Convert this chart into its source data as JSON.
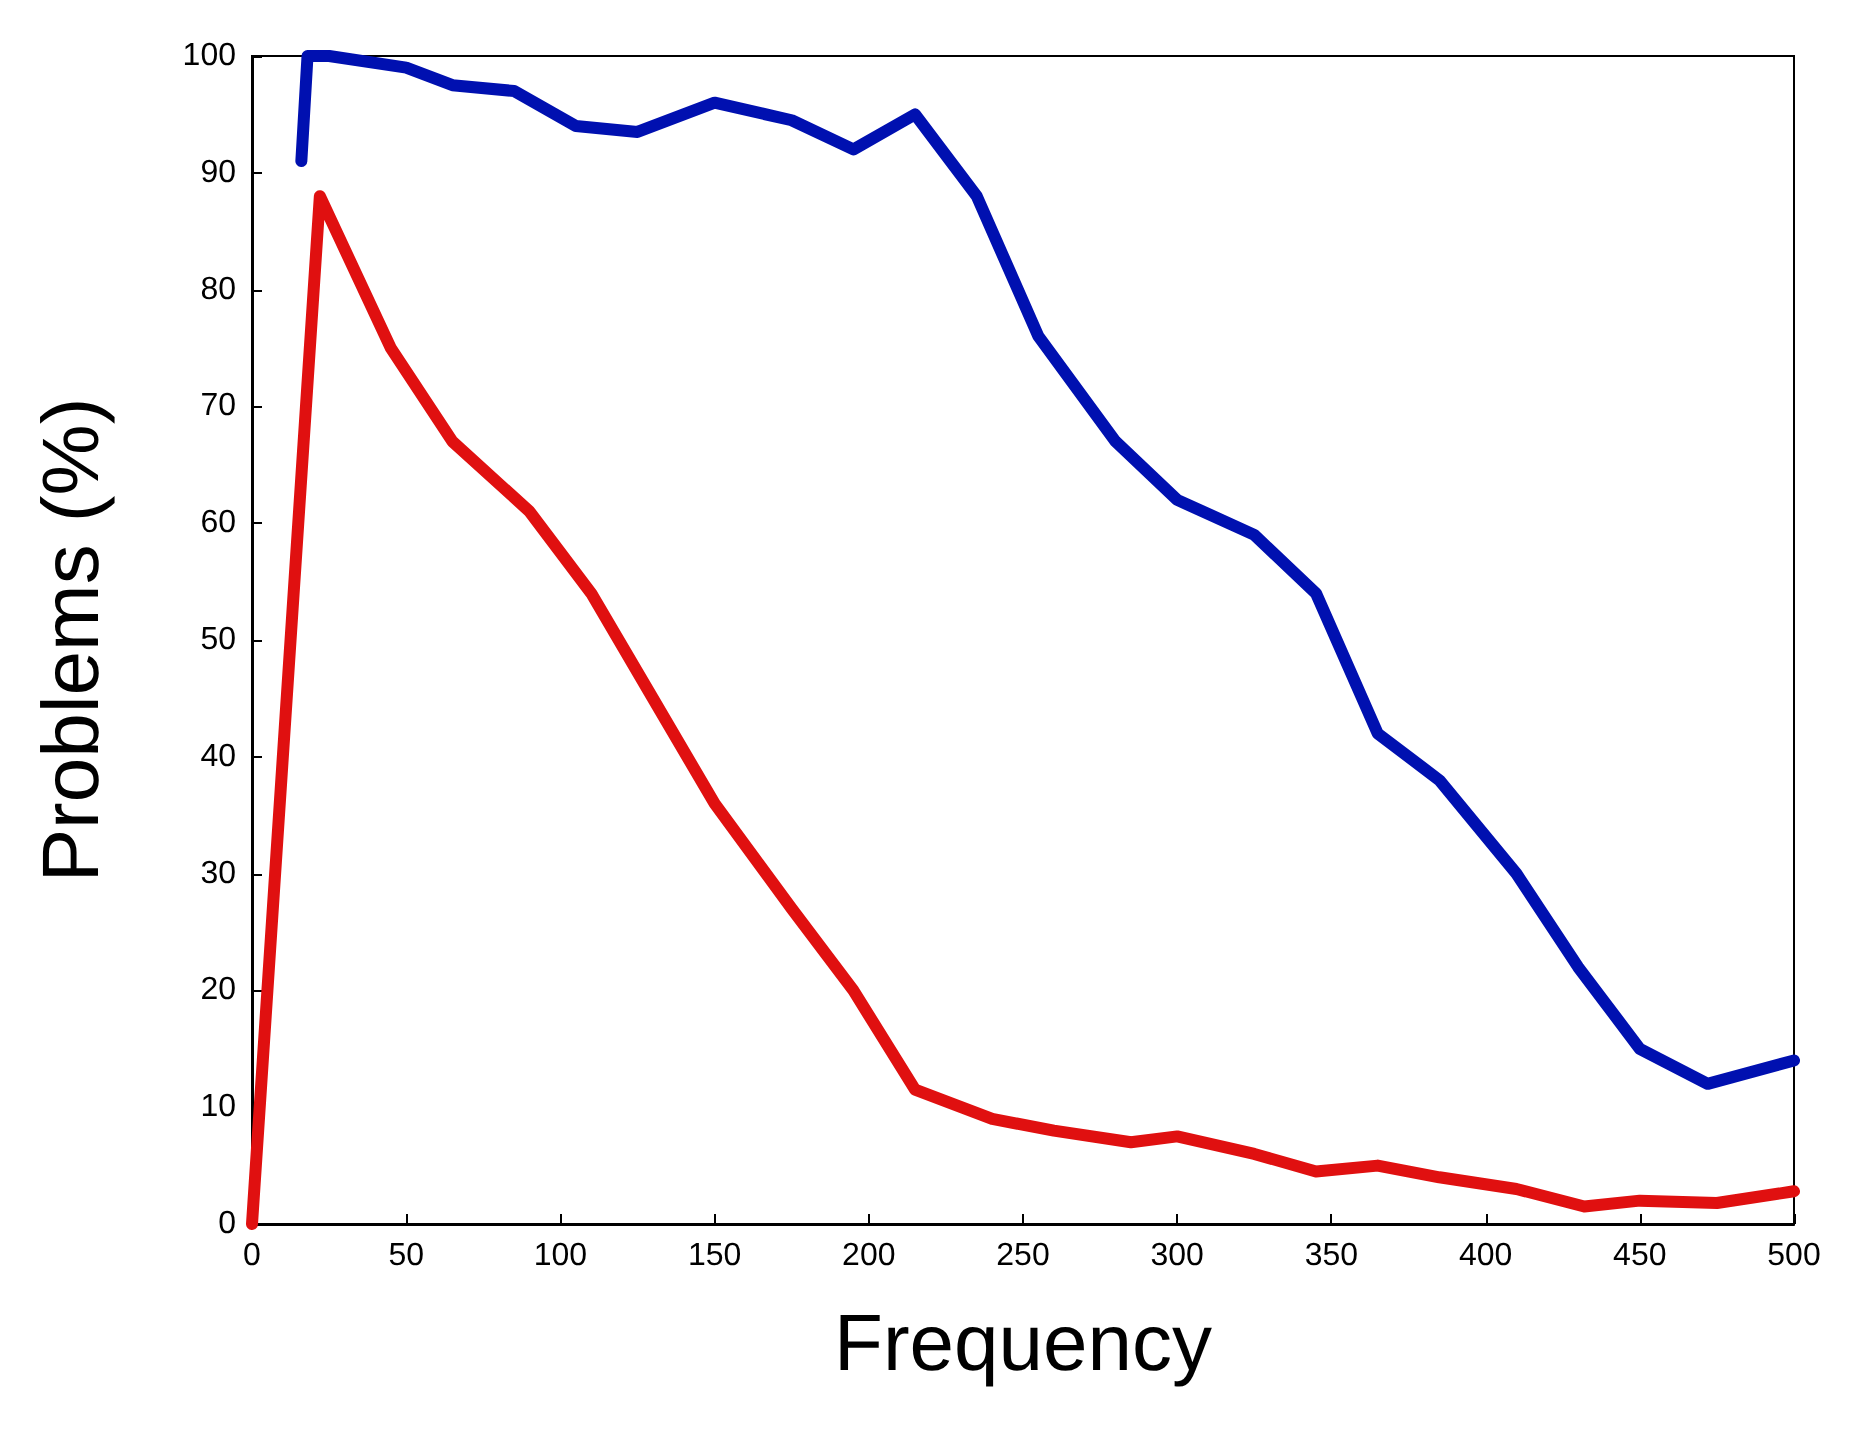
{
  "chart_data": {
    "type": "line",
    "xlabel": "Frequency",
    "ylabel": "Problems (%)",
    "xlim": [
      0,
      500
    ],
    "xticks": [
      0,
      50,
      100,
      150,
      200,
      250,
      300,
      350,
      400,
      450,
      500
    ],
    "ylim": [
      0,
      100
    ],
    "yticks": [
      0,
      10,
      20,
      30,
      40,
      50,
      60,
      70,
      80,
      90,
      100
    ],
    "grid": false,
    "marker": "none",
    "line_style": "solid",
    "series": [
      {
        "color": "#0010b0",
        "x": [
          16,
          18,
          25,
          50,
          65,
          85,
          105,
          125,
          150,
          175,
          195,
          215,
          235,
          255,
          280,
          300,
          325,
          345,
          365,
          385,
          410,
          430,
          450,
          472,
          500
        ],
        "values": [
          91,
          100,
          100,
          99,
          97.5,
          97,
          94,
          93.5,
          96,
          94.5,
          92,
          95,
          88,
          76,
          67,
          62,
          59,
          54,
          42,
          38,
          30,
          22,
          15,
          12,
          14
        ]
      },
      {
        "color": "#e01010",
        "x": [
          0,
          22,
          45,
          65,
          90,
          110,
          130,
          150,
          175,
          195,
          215,
          240,
          260,
          285,
          300,
          325,
          345,
          365,
          385,
          410,
          432,
          450,
          475,
          500
        ],
        "values": [
          0,
          88,
          75,
          67,
          61,
          54,
          45,
          36,
          27,
          20,
          11.5,
          9,
          8,
          7,
          7.5,
          6,
          4.5,
          5,
          4,
          3,
          1.5,
          2,
          1.8,
          2.8
        ]
      }
    ]
  }
}
